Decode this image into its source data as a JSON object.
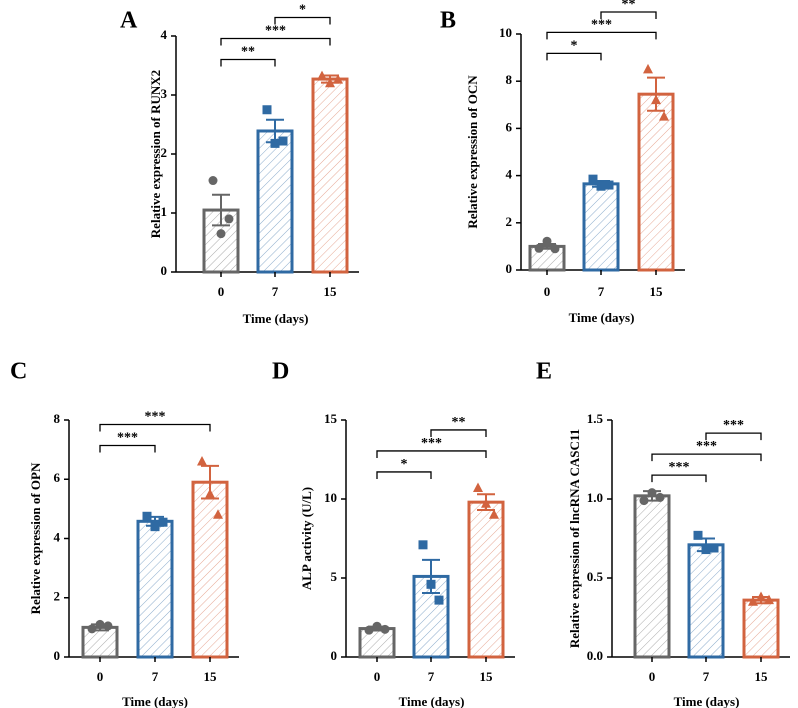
{
  "colors": {
    "day0": "#666666",
    "day7": "#2f6aa3",
    "day15": "#d2633f",
    "axis": "#000000"
  },
  "chart_data": [
    {
      "type": "bar",
      "panel": "A",
      "categories": [
        "0",
        "7",
        "15"
      ],
      "values": [
        1.05,
        2.39,
        3.27
      ],
      "errors": [
        0.26,
        0.19,
        0.06
      ],
      "points": [
        [
          1.55,
          0.65,
          0.9
        ],
        [
          2.75,
          2.18,
          2.22
        ],
        [
          3.32,
          3.2,
          3.26
        ]
      ],
      "marker_shapes": [
        "circle",
        "square",
        "triangle"
      ],
      "ylabel": "Relative expression of RUNX2",
      "xlabel": "Time (days)",
      "ylim": [
        0,
        4
      ],
      "yticks": [
        "0",
        "1",
        "2",
        "3",
        "4"
      ],
      "significance": [
        {
          "from": 0,
          "to": 1,
          "label": "**"
        },
        {
          "from": 0,
          "to": 2,
          "label": "***"
        },
        {
          "from": 1,
          "to": 2,
          "label": "*"
        }
      ]
    },
    {
      "type": "bar",
      "panel": "B",
      "categories": [
        "0",
        "7",
        "15"
      ],
      "values": [
        1.0,
        3.65,
        7.45
      ],
      "errors": [
        0.1,
        0.12,
        0.7
      ],
      "points": [
        [
          0.92,
          1.22,
          0.9
        ],
        [
          3.85,
          3.55,
          3.6
        ],
        [
          8.5,
          7.2,
          6.5
        ]
      ],
      "marker_shapes": [
        "circle",
        "square",
        "triangle"
      ],
      "ylabel": "Relative expression of OCN",
      "xlabel": "Time (days)",
      "ylim": [
        0,
        10
      ],
      "yticks": [
        "0",
        "2",
        "4",
        "6",
        "8",
        "10"
      ],
      "significance": [
        {
          "from": 0,
          "to": 1,
          "label": "*"
        },
        {
          "from": 0,
          "to": 2,
          "label": "***"
        },
        {
          "from": 1,
          "to": 2,
          "label": "**"
        }
      ]
    },
    {
      "type": "bar",
      "panel": "C",
      "categories": [
        "0",
        "7",
        "15"
      ],
      "values": [
        1.0,
        4.58,
        5.9
      ],
      "errors": [
        0.1,
        0.15,
        0.55
      ],
      "points": [
        [
          0.95,
          1.1,
          1.05
        ],
        [
          4.75,
          4.4,
          4.55
        ],
        [
          6.6,
          5.5,
          4.8
        ]
      ],
      "marker_shapes": [
        "circle",
        "square",
        "triangle"
      ],
      "ylabel": "Relative expression of OPN",
      "xlabel": "Time (days)",
      "ylim": [
        0,
        8
      ],
      "yticks": [
        "0",
        "2",
        "4",
        "6",
        "8"
      ],
      "significance": [
        {
          "from": 0,
          "to": 1,
          "label": "***"
        },
        {
          "from": 0,
          "to": 2,
          "label": "***"
        }
      ]
    },
    {
      "type": "bar",
      "panel": "D",
      "categories": [
        "0",
        "7",
        "15"
      ],
      "values": [
        1.8,
        5.1,
        9.8
      ],
      "errors": [
        0.12,
        1.05,
        0.5
      ],
      "points": [
        [
          1.7,
          1.95,
          1.75
        ],
        [
          7.1,
          4.6,
          3.6
        ],
        [
          10.7,
          9.7,
          9.0
        ]
      ],
      "marker_shapes": [
        "circle",
        "square",
        "triangle"
      ],
      "ylabel": "ALP activity (U/L)",
      "xlabel": "Time (days)",
      "ylim": [
        0,
        15
      ],
      "yticks": [
        "0",
        "5",
        "10",
        "15"
      ],
      "significance": [
        {
          "from": 0,
          "to": 1,
          "label": "*"
        },
        {
          "from": 0,
          "to": 2,
          "label": "***"
        },
        {
          "from": 1,
          "to": 2,
          "label": "**"
        }
      ]
    },
    {
      "type": "bar",
      "panel": "E",
      "categories": [
        "0",
        "7",
        "15"
      ],
      "values": [
        1.02,
        0.71,
        0.36
      ],
      "errors": [
        0.03,
        0.04,
        0.02
      ],
      "points": [
        [
          0.99,
          1.04,
          1.01
        ],
        [
          0.77,
          0.68,
          0.69
        ],
        [
          0.35,
          0.38,
          0.36
        ]
      ],
      "marker_shapes": [
        "circle",
        "square",
        "triangle"
      ],
      "ylabel": "Relative expression of lncRNA CASC11",
      "xlabel": "Time (days)",
      "ylim": [
        0,
        1.5
      ],
      "yticks": [
        "0.0",
        "0.5",
        "1.0",
        "1.5"
      ],
      "significance": [
        {
          "from": 0,
          "to": 1,
          "label": "***"
        },
        {
          "from": 0,
          "to": 2,
          "label": "***"
        },
        {
          "from": 1,
          "to": 2,
          "label": "***"
        }
      ]
    }
  ]
}
